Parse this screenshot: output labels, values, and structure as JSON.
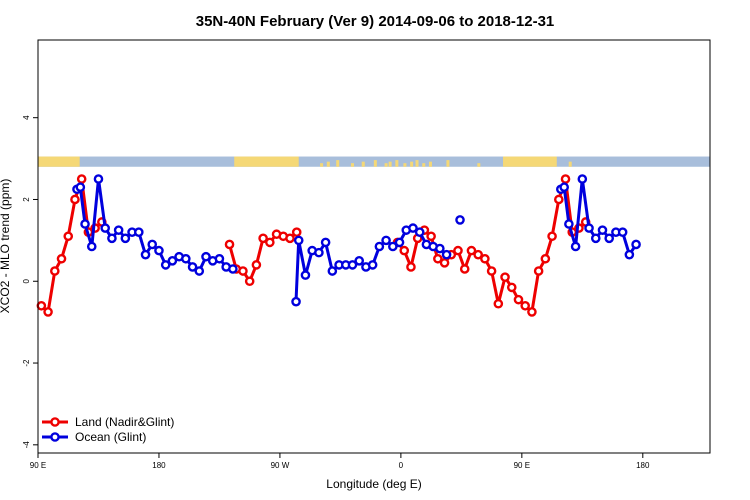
{
  "chart_data": {
    "type": "line",
    "title": "35N-40N February (Ver 9)   2014-09-06 to 2018-12-31",
    "xlabel": "Longitude (deg E)",
    "ylabel": "XCO2 - MLO trend (ppm)",
    "xlim": [
      90,
      590
    ],
    "ylim": [
      -4.2,
      5.9
    ],
    "x_ticks": [
      {
        "value": 90,
        "label": "90 E"
      },
      {
        "value": 180,
        "label": "180"
      },
      {
        "value": 270,
        "label": "90 W"
      },
      {
        "value": 360,
        "label": "0"
      },
      {
        "value": 450,
        "label": "90 E"
      },
      {
        "value": 540,
        "label": "180"
      }
    ],
    "y_ticks": [
      {
        "value": -4,
        "label": "-4"
      },
      {
        "value": -2,
        "label": "-2"
      },
      {
        "value": 0,
        "label": "0"
      },
      {
        "value": 2,
        "label": "2"
      },
      {
        "value": 4,
        "label": "4"
      }
    ],
    "legend_position": "bottom-left",
    "land_ocean_band": {
      "y_range": [
        2.8,
        3.05
      ],
      "ocean_color": "#a8bedb",
      "land_color": "#f5d876",
      "land_segments": [
        [
          90,
          121
        ],
        [
          236,
          284
        ],
        [
          436,
          476
        ]
      ],
      "land_specks": [
        301,
        306,
        313,
        324,
        332,
        341,
        349,
        352,
        357,
        363,
        368,
        372,
        377,
        382,
        395,
        418,
        486
      ]
    },
    "series": [
      {
        "name": "Land (Nadir&Glint)",
        "color": "#ee0000",
        "segments": [
          [
            [
              92.5,
              -0.6
            ],
            [
              97.5,
              -0.75
            ],
            [
              102.5,
              0.25
            ],
            [
              107.5,
              0.55
            ],
            [
              112.5,
              1.1
            ],
            [
              117.5,
              2.0
            ],
            [
              122.5,
              2.5
            ],
            [
              127.5,
              1.2
            ],
            [
              132.5,
              1.3
            ],
            [
              137.5,
              1.45
            ]
          ],
          [
            [
              232.5,
              0.9
            ],
            [
              237.5,
              0.3
            ],
            [
              242.5,
              0.25
            ],
            [
              247.5,
              0.0
            ],
            [
              252.5,
              0.4
            ],
            [
              257.5,
              1.05
            ],
            [
              262.5,
              0.95
            ],
            [
              267.5,
              1.15
            ],
            [
              272.5,
              1.1
            ],
            [
              277.5,
              1.05
            ],
            [
              282.5,
              1.2
            ]
          ],
          [
            [
              357.5,
              0.95
            ],
            [
              362.5,
              0.75
            ],
            [
              367.5,
              0.35
            ],
            [
              372.5,
              1.05
            ],
            [
              377.5,
              1.25
            ],
            [
              382.5,
              1.1
            ],
            [
              387.5,
              0.55
            ],
            [
              392.5,
              0.45
            ],
            [
              397.5,
              0.65
            ],
            [
              402.5,
              0.75
            ],
            [
              407.5,
              0.3
            ],
            [
              412.5,
              0.75
            ],
            [
              417.5,
              0.65
            ],
            [
              422.5,
              0.55
            ],
            [
              427.5,
              0.25
            ],
            [
              432.5,
              -0.55
            ],
            [
              437.5,
              0.1
            ],
            [
              442.5,
              -0.15
            ],
            [
              447.5,
              -0.45
            ],
            [
              452.5,
              -0.6
            ],
            [
              457.5,
              -0.75
            ],
            [
              462.5,
              0.25
            ],
            [
              467.5,
              0.55
            ],
            [
              472.5,
              1.1
            ],
            [
              477.5,
              2.0
            ],
            [
              482.5,
              2.5
            ],
            [
              487.5,
              1.2
            ],
            [
              492.5,
              1.3
            ],
            [
              497.5,
              1.45
            ]
          ]
        ]
      },
      {
        "name": "Ocean (Glint)",
        "color": "#0000dd",
        "segments": [
          [
            [
              119,
              2.25
            ],
            [
              121.5,
              2.3
            ],
            [
              125,
              1.4
            ],
            [
              130,
              0.85
            ],
            [
              135,
              2.5
            ],
            [
              140,
              1.3
            ],
            [
              145,
              1.05
            ],
            [
              150,
              1.25
            ],
            [
              155,
              1.05
            ],
            [
              160,
              1.2
            ],
            [
              165,
              1.2
            ],
            [
              170,
              0.65
            ],
            [
              175,
              0.9
            ],
            [
              180,
              0.75
            ],
            [
              185,
              0.4
            ],
            [
              190,
              0.5
            ],
            [
              195,
              0.6
            ],
            [
              200,
              0.55
            ],
            [
              205,
              0.35
            ],
            [
              210,
              0.25
            ],
            [
              215,
              0.6
            ],
            [
              220,
              0.5
            ],
            [
              225,
              0.55
            ],
            [
              230,
              0.35
            ],
            [
              235,
              0.3
            ]
          ],
          [
            [
              282,
              -0.5
            ],
            [
              284,
              1.0
            ],
            [
              289,
              0.15
            ],
            [
              294,
              0.75
            ],
            [
              299,
              0.7
            ],
            [
              304,
              0.95
            ],
            [
              309,
              0.25
            ],
            [
              314,
              0.4
            ],
            [
              319,
              0.4
            ],
            [
              324,
              0.4
            ],
            [
              329,
              0.5
            ],
            [
              334,
              0.35
            ],
            [
              339,
              0.4
            ],
            [
              344,
              0.85
            ],
            [
              349,
              1.0
            ],
            [
              354,
              0.85
            ],
            [
              359,
              0.95
            ],
            [
              364,
              1.25
            ],
            [
              369,
              1.3
            ],
            [
              374,
              1.2
            ],
            [
              379,
              0.9
            ],
            [
              384,
              0.85
            ],
            [
              389,
              0.8
            ],
            [
              394,
              0.65
            ]
          ],
          [
            [
              404,
              1.5
            ]
          ],
          [
            [
              479,
              2.25
            ],
            [
              481.5,
              2.3
            ],
            [
              485,
              1.4
            ],
            [
              490,
              0.85
            ],
            [
              495,
              2.5
            ],
            [
              500,
              1.3
            ],
            [
              505,
              1.05
            ],
            [
              510,
              1.25
            ],
            [
              515,
              1.05
            ],
            [
              520,
              1.2
            ],
            [
              525,
              1.2
            ],
            [
              530,
              0.65
            ],
            [
              535,
              0.9
            ]
          ]
        ]
      }
    ]
  }
}
